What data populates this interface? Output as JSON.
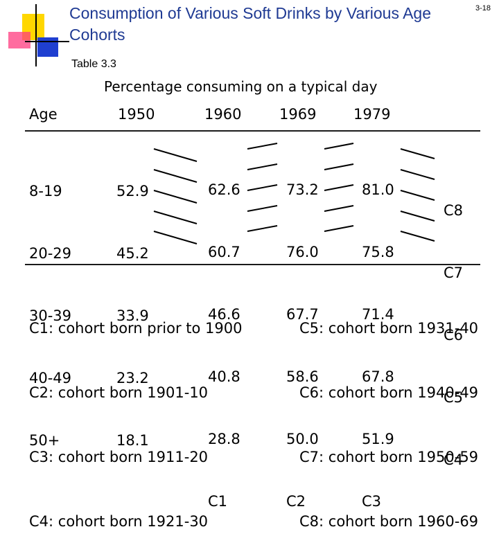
{
  "slide": {
    "title": "Consumption of Various Soft Drinks by Various Age Cohorts",
    "number": "3-18",
    "table_label": "Table 3.3",
    "subtitle": "Percentage consuming on a typical day"
  },
  "table": {
    "headers": [
      "Age",
      "1950",
      "1960",
      "1969",
      "1979"
    ],
    "ages": [
      "8-19",
      "20-29",
      "30-39",
      "40-49",
      "50+"
    ],
    "y1950": [
      "52.9",
      "45.2",
      "33.9",
      "23.2",
      "18.1"
    ],
    "y1960": [
      "62.6",
      "60.7",
      "46.6",
      "40.8",
      "28.8",
      "C1"
    ],
    "y1969": [
      "73.2",
      "76.0",
      "67.7",
      "58.6",
      "50.0",
      "C2"
    ],
    "y1979": [
      "81.0",
      "75.8",
      "71.4",
      "67.8",
      "51.9",
      "C3"
    ],
    "cohort_col": [
      "C8",
      "C7",
      "C6",
      "C5",
      "C4"
    ]
  },
  "legend": {
    "left": [
      "C1: cohort born prior to 1900",
      "C2: cohort born 1901-10",
      "C3: cohort born 1911-20",
      "C4: cohort born 1921-30"
    ],
    "right": [
      "C5: cohort born 1931-40",
      "C6: cohort born 1940-49",
      "C7: cohort born 1950-59",
      "C8: cohort born 1960-69"
    ]
  },
  "colors": {
    "title": "#1f3a93",
    "deco_yellow": "#ffd700",
    "deco_blue": "#1f3fd0",
    "deco_pink": "#ff3b7f",
    "rule": "#1a1a1a"
  }
}
